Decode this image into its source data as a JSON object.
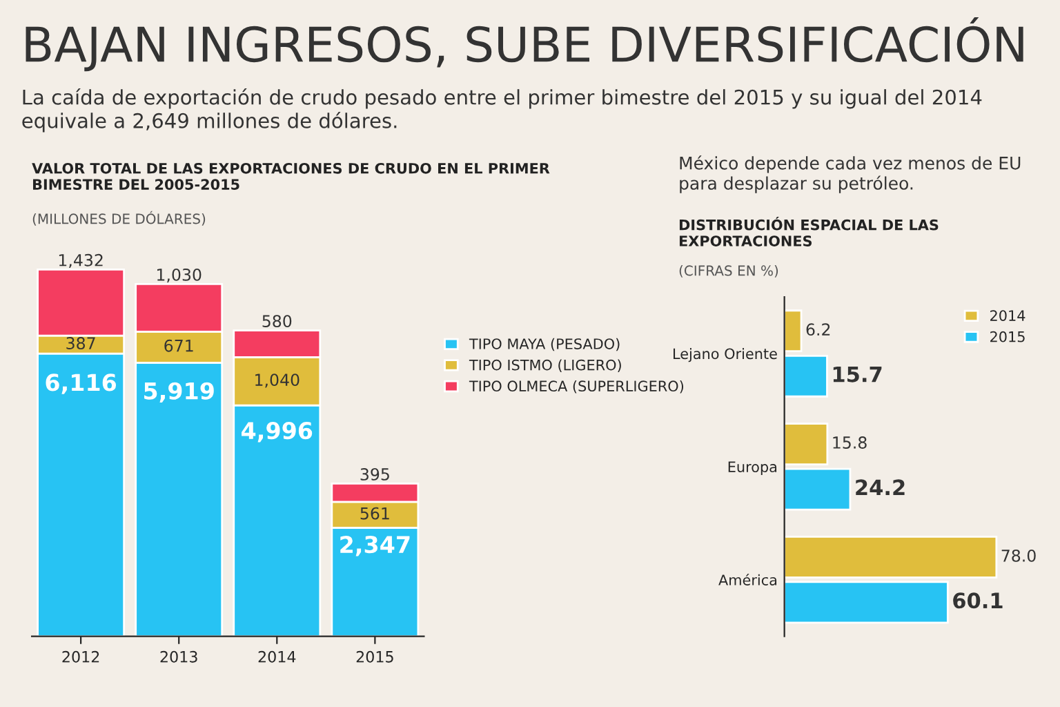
{
  "chart_data": [
    {
      "type": "other",
      "title": "BAJAN INGRESOS, SUBE DIVERSIFICACIÓN",
      "subtitle": "La caída de exportación de crudo pesado entre el primer bimestre del 2015 y su igual del 2014 equivale a 2,649 millones de dólares."
    },
    {
      "type": "bar",
      "stacked": true,
      "title": "VALOR TOTAL DE LAS EXPORTACIONES DE CRUDO EN EL PRIMER BIMESTRE DEL 2005-2015",
      "subtitle": "(MILLONES DE DÓLARES)",
      "categories": [
        "2012",
        "2013",
        "2014",
        "2015"
      ],
      "legend": "right",
      "grid": false,
      "series": [
        {
          "name": "TIPO MAYA (PESADO)",
          "color": "#27c3f3",
          "values": [
            6116,
            5919,
            4996,
            2347
          ],
          "value_labels": [
            "6,116",
            "5,919",
            "4,996",
            "2,347"
          ]
        },
        {
          "name": "TIPO ISTMO (LIGERO)",
          "color": "#e0bd3c",
          "values": [
            387,
            671,
            1040,
            561
          ],
          "value_labels": [
            "387",
            "671",
            "1,040",
            "561"
          ]
        },
        {
          "name": "TIPO OLMECA (SUPERLIGERO)",
          "color": "#f43d60",
          "values": [
            1432,
            1030,
            580,
            395
          ],
          "value_labels": [
            "1,432",
            "1,030",
            "580",
            "395"
          ]
        }
      ]
    },
    {
      "type": "bar",
      "orientation": "horizontal",
      "title": "DISTRIBUCIÓN ESPACIAL DE LAS EXPORTACIONES",
      "subtitle": "(CIFRAS EN %)",
      "annotations": [
        "México depende cada vez menos de EU para desplazar su petróleo."
      ],
      "categories": [
        "Lejano Oriente",
        "Europa",
        "América"
      ],
      "legend": "top right",
      "grid": false,
      "series": [
        {
          "name": "2014",
          "color": "#e0bd3c",
          "values": [
            6.2,
            15.8,
            78.0
          ],
          "value_labels": [
            "6.2",
            "15.8",
            "78.0"
          ]
        },
        {
          "name": "2015",
          "color": "#27c3f3",
          "values": [
            15.7,
            24.2,
            60.1
          ],
          "value_labels": [
            "15.7",
            "24.2",
            "60.1"
          ]
        }
      ]
    }
  ]
}
